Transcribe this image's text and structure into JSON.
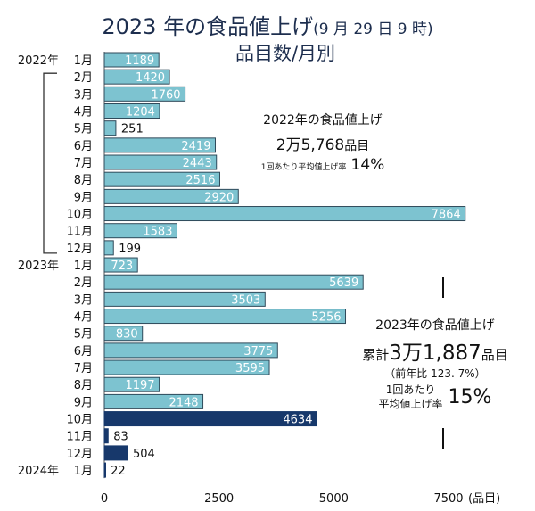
{
  "chart_data": {
    "type": "bar",
    "orientation": "horizontal",
    "title": "2023 年の食品値上げ",
    "title_note": "(9 月 29 日 9 時)",
    "subtitle": "品目数/月別",
    "categories": [
      {
        "year": "2022年",
        "month": "1月"
      },
      {
        "year": "",
        "month": "2月"
      },
      {
        "year": "",
        "month": "3月"
      },
      {
        "year": "",
        "month": "4月"
      },
      {
        "year": "",
        "month": "5月"
      },
      {
        "year": "",
        "month": "6月"
      },
      {
        "year": "",
        "month": "7月"
      },
      {
        "year": "",
        "month": "8月"
      },
      {
        "year": "",
        "month": "9月"
      },
      {
        "year": "",
        "month": "10月"
      },
      {
        "year": "",
        "month": "11月"
      },
      {
        "year": "",
        "month": "12月"
      },
      {
        "year": "2023年",
        "month": "1月"
      },
      {
        "year": "",
        "month": "2月"
      },
      {
        "year": "",
        "month": "3月"
      },
      {
        "year": "",
        "month": "4月"
      },
      {
        "year": "",
        "month": "5月"
      },
      {
        "year": "",
        "month": "6月"
      },
      {
        "year": "",
        "month": "7月"
      },
      {
        "year": "",
        "month": "8月"
      },
      {
        "year": "",
        "month": "9月"
      },
      {
        "year": "",
        "month": "10月"
      },
      {
        "year": "",
        "month": "11月"
      },
      {
        "year": "",
        "month": "12月"
      },
      {
        "year": "2024年",
        "month": "1月"
      }
    ],
    "values": [
      1189,
      1420,
      1760,
      1204,
      251,
      2419,
      2443,
      2516,
      2920,
      7864,
      1583,
      199,
      723,
      5639,
      3503,
      5256,
      830,
      3775,
      3595,
      1197,
      2148,
      4634,
      83,
      504,
      22
    ],
    "bar_style": [
      "past",
      "past",
      "past",
      "past",
      "past",
      "past",
      "past",
      "past",
      "past",
      "past",
      "past",
      "past",
      "past",
      "past",
      "past",
      "past",
      "past",
      "past",
      "past",
      "past",
      "past",
      "future",
      "future",
      "future",
      "future"
    ],
    "colors": {
      "past": "#7dc3d0",
      "future": "#17386b",
      "border": "#2f4a5a"
    },
    "xlim": [
      0,
      7500
    ],
    "xticks": [
      "0",
      "2500",
      "5000",
      "7500"
    ],
    "xunit": "(品目)",
    "grid": false
  },
  "annotations": {
    "y2022": {
      "title": "2022年の食品値上げ",
      "total": "2万5,768",
      "total_unit": "品目",
      "rate_label": "1回あたり平均値上げ率",
      "rate": "14%"
    },
    "y2023": {
      "title": "2023年の食品値上げ",
      "prefix": "累計",
      "total": "3万1,887",
      "total_unit": "品目",
      "yoy": "（前年比 123. 7%）",
      "rate_label1": "1回あたり",
      "rate_label2": "平均値上げ率",
      "rate": "15%"
    }
  }
}
